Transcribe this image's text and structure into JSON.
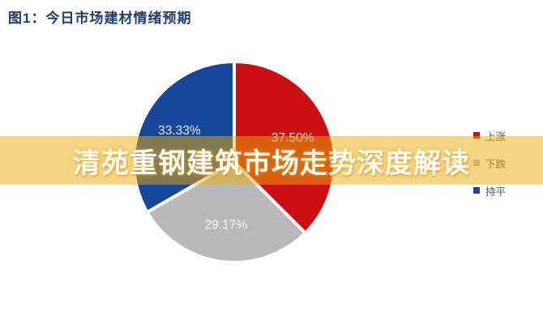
{
  "figure": {
    "title": "图1：今日市场建材情绪预期",
    "title_color": "#1e3e72",
    "background": "#ffffff"
  },
  "banner": {
    "text": "清苑重钢建筑市场走势深度解读",
    "bg_color": "rgba(235,173,10,0.5)",
    "text_color": "#ffffff"
  },
  "chart_data": {
    "type": "pie",
    "title": "图1：今日市场建材情绪预期",
    "start_angle_deg": 0,
    "direction": "clockwise",
    "legend_position": "right",
    "slices": [
      {
        "name": "up",
        "label": "上涨",
        "value": 37.5,
        "display": "37.50%",
        "color": "#cc0d12"
      },
      {
        "name": "down",
        "label": "下跌",
        "value": 29.17,
        "display": "29.17%",
        "color": "#b9b9bb"
      },
      {
        "name": "flat",
        "label": "持平",
        "value": 33.33,
        "display": "33.33%",
        "color": "#15479c"
      }
    ]
  }
}
